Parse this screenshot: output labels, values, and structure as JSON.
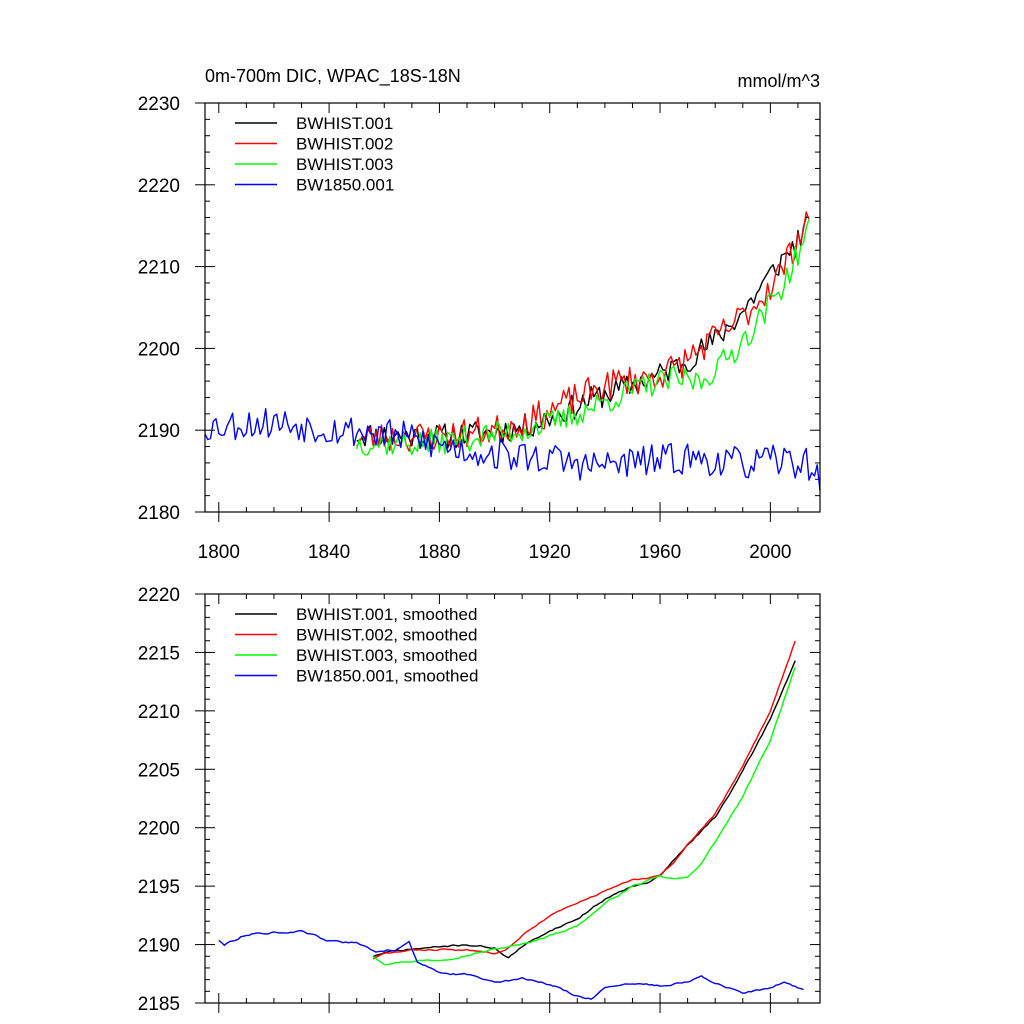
{
  "chart_data": [
    {
      "type": "line",
      "title": "0m-700m DIC, WPAC_18S-18N",
      "units": "mmol/m^3",
      "xlim": [
        1795,
        2018
      ],
      "ylim": [
        2180,
        2230
      ],
      "x_ticks": [
        1800,
        1840,
        1880,
        1920,
        1960,
        2000
      ],
      "x_tick_labels": [
        "1800",
        "1840",
        "1880",
        "1920",
        "1960",
        "2000"
      ],
      "y_ticks": [
        2180,
        2190,
        2200,
        2210,
        2220,
        2230
      ],
      "y_tick_labels": [
        "2180",
        "2190",
        "2200",
        "2210",
        "2220",
        "2230"
      ],
      "legend_position": "top-left",
      "series": [
        {
          "name": "BWHIST.001",
          "color": "#000000",
          "x_start": 1850,
          "x_end": 2014,
          "base_x": [
            1850,
            1880,
            1900,
            1910,
            1920,
            1935,
            1950,
            1960,
            1970,
            1980,
            1990,
            2000,
            2014
          ],
          "base_y": [
            2189.5,
            2189.2,
            2189.8,
            2190.3,
            2191.5,
            2193.8,
            2195.5,
            2196.8,
            2198.6,
            2201,
            2204.5,
            2209,
            2215
          ],
          "noise_amp": 1.6,
          "seed": 11
        },
        {
          "name": "BWHIST.002",
          "color": "#ff0000",
          "x_start": 1850,
          "x_end": 2014,
          "base_x": [
            1850,
            1880,
            1900,
            1915,
            1930,
            1945,
            1955,
            1965,
            1975,
            1985,
            1995,
            2005,
            2014
          ],
          "base_y": [
            2189,
            2189.3,
            2190,
            2191.5,
            2194,
            2196,
            2196.3,
            2197.5,
            2200,
            2202.5,
            2205.5,
            2210,
            2216.5
          ],
          "noise_amp": 1.9,
          "seed": 23
        },
        {
          "name": "BWHIST.003",
          "color": "#00ff00",
          "x_start": 1850,
          "x_end": 2014,
          "base_x": [
            1850,
            1870,
            1890,
            1910,
            1925,
            1940,
            1955,
            1965,
            1975,
            1985,
            1995,
            2005,
            2014
          ],
          "base_y": [
            2188.5,
            2188.3,
            2189,
            2190,
            2191.3,
            2193.5,
            2195.5,
            2196.2,
            2196,
            2199,
            2203,
            2208,
            2214.5
          ],
          "noise_amp": 1.6,
          "seed": 37
        },
        {
          "name": "BW1850.001",
          "color": "#0000ff",
          "x_start": 1795,
          "x_end": 2018,
          "base_x": [
            1795,
            1820,
            1840,
            1860,
            1875,
            1890,
            1905,
            1920,
            1935,
            1950,
            1970,
            1990,
            2005,
            2015,
            2018
          ],
          "base_y": [
            2190.5,
            2191,
            2190.2,
            2189.6,
            2188.6,
            2187.5,
            2186.9,
            2186.5,
            2185.6,
            2186.1,
            2186.6,
            2185.9,
            2186.3,
            2185.8,
            2183
          ],
          "noise_amp": 2.0,
          "seed": 53
        }
      ]
    },
    {
      "type": "line",
      "title": "",
      "xlim": [
        1795,
        2018
      ],
      "ylim": [
        2185,
        2220
      ],
      "x_ticks": [
        1800,
        1840,
        1880,
        1920,
        1960,
        2000
      ],
      "y_ticks": [
        2185,
        2190,
        2195,
        2200,
        2205,
        2210,
        2215,
        2220
      ],
      "y_tick_labels": [
        "2185",
        "2190",
        "2195",
        "2200",
        "2205",
        "2210",
        "2215",
        "2220"
      ],
      "legend_position": "top-left",
      "series": [
        {
          "name": "BWHIST.001, smoothed",
          "color": "#000000",
          "x_start": 1856,
          "x_end": 2009,
          "base_x": [
            1856,
            1860,
            1870,
            1880,
            1890,
            1900,
            1905,
            1910,
            1920,
            1930,
            1940,
            1950,
            1955,
            1960,
            1965,
            1970,
            1980,
            1990,
            2000,
            2009
          ],
          "base_y": [
            2189,
            2189.3,
            2189.6,
            2189.8,
            2190,
            2189.7,
            2188.9,
            2189.8,
            2191.2,
            2192.2,
            2193.9,
            2195.1,
            2195.2,
            2195.9,
            2197.2,
            2198.5,
            2200.9,
            2204.8,
            2209.3,
            2214.3
          ],
          "noise_amp": 0.2,
          "seed": 71
        },
        {
          "name": "BWHIST.002, smoothed",
          "color": "#ff0000",
          "x_start": 1856,
          "x_end": 2009,
          "base_x": [
            1856,
            1860,
            1870,
            1880,
            1890,
            1900,
            1905,
            1910,
            1920,
            1930,
            1940,
            1950,
            1955,
            1960,
            1965,
            1970,
            1980,
            1990,
            2000,
            2009
          ],
          "base_y": [
            2188.8,
            2189.2,
            2189.5,
            2189.6,
            2189.5,
            2189.3,
            2189.8,
            2190.8,
            2192.5,
            2193.5,
            2194.6,
            2195.5,
            2195.6,
            2195.9,
            2197,
            2198.6,
            2201.2,
            2205.2,
            2210,
            2216
          ],
          "noise_amp": 0.2,
          "seed": 83
        },
        {
          "name": "BWHIST.003, smoothed",
          "color": "#00ff00",
          "x_start": 1856,
          "x_end": 2009,
          "base_x": [
            1856,
            1860,
            1870,
            1880,
            1890,
            1900,
            1910,
            1920,
            1930,
            1940,
            1950,
            1960,
            1965,
            1970,
            1975,
            1980,
            1990,
            2000,
            2009
          ],
          "base_y": [
            2189,
            2188.4,
            2188.6,
            2188.7,
            2189.1,
            2189.6,
            2190,
            2190.8,
            2191.6,
            2193.5,
            2195,
            2195.8,
            2195.6,
            2195.7,
            2197,
            2198.8,
            2202.6,
            2207.5,
            2213.8
          ],
          "noise_amp": 0.2,
          "seed": 97
        },
        {
          "name": "BW1850.001, smoothed",
          "color": "#0000ff",
          "x_start": 1800,
          "x_end": 2012,
          "base_x": [
            1800,
            1802,
            1810,
            1820,
            1830,
            1840,
            1850,
            1857,
            1864,
            1869,
            1872,
            1880,
            1890,
            1900,
            1910,
            1920,
            1925,
            1930,
            1935,
            1940,
            1950,
            1960,
            1970,
            1975,
            1980,
            1990,
            2000,
            2005,
            2012
          ],
          "base_y": [
            2190.4,
            2190,
            2190.9,
            2191.1,
            2191.1,
            2190.3,
            2190.1,
            2189.4,
            2189.6,
            2190.2,
            2188.6,
            2187.5,
            2187.4,
            2186.9,
            2187.1,
            2186.6,
            2186.1,
            2185.6,
            2185.4,
            2186.3,
            2186.6,
            2186.5,
            2186.9,
            2187.3,
            2186.6,
            2185.9,
            2186.2,
            2186.8,
            2186.1
          ],
          "noise_amp": 0.25,
          "seed": 113
        }
      ]
    }
  ]
}
